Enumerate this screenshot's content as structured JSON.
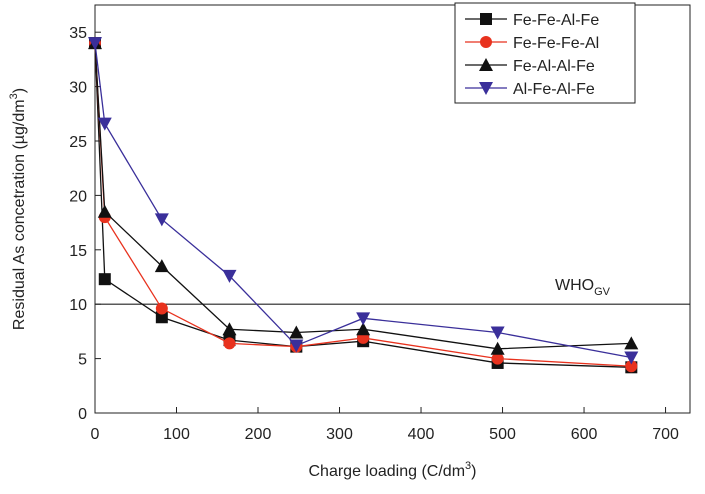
{
  "chart_data": {
    "type": "line",
    "x_label": {
      "text": "Charge loading (C/dm",
      "sup": "3",
      "end": ")"
    },
    "y_label": {
      "text": "Residual As concetration (µg/dm",
      "sup": "3",
      "end": ")"
    },
    "x": [
      0,
      12,
      82,
      165,
      247,
      329,
      494,
      658
    ],
    "series": [
      {
        "name": "Fe-Fe-Al-Fe",
        "color": "#111111",
        "marker": "square",
        "values": [
          34,
          12.3,
          8.8,
          6.7,
          6.1,
          6.6,
          4.6,
          4.2
        ]
      },
      {
        "name": "Fe-Fe-Fe-Al",
        "color": "#e8321e",
        "marker": "circle",
        "values": [
          34,
          18,
          9.6,
          6.4,
          6.1,
          6.9,
          5.0,
          4.3
        ]
      },
      {
        "name": "Fe-Al-Al-Fe",
        "color": "#111111",
        "marker": "triangle",
        "values": [
          34,
          18.5,
          13.5,
          7.7,
          7.4,
          7.7,
          5.9,
          6.4
        ]
      },
      {
        "name": "Al-Fe-Al-Fe",
        "color": "#3a2f9a",
        "marker": "triangle-down",
        "values": [
          34,
          26.6,
          17.8,
          12.6,
          6.2,
          8.7,
          7.4,
          5.1
        ]
      }
    ],
    "reference_line": {
      "value": 10,
      "text": "WHO",
      "sub": "GV"
    },
    "xlim": [
      0,
      730
    ],
    "xticks": [
      0,
      100,
      200,
      300,
      400,
      500,
      600,
      700
    ],
    "ylim": [
      0,
      37.5
    ],
    "yticks": [
      0,
      5,
      10,
      15,
      20,
      25,
      30,
      35
    ],
    "legend": "top-right"
  }
}
